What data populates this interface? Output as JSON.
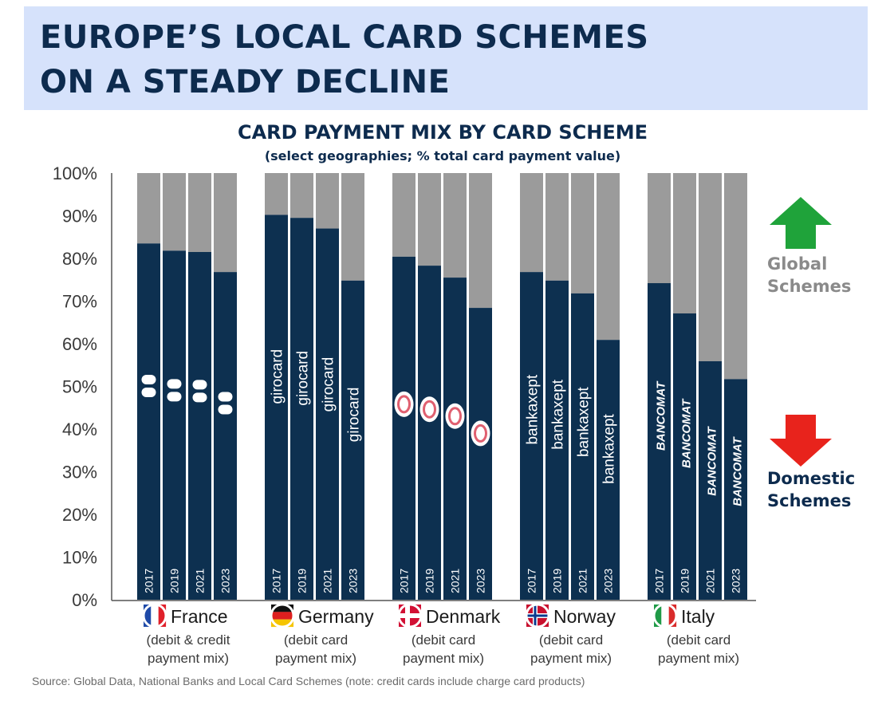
{
  "header": {
    "line1": "EUROPE’S LOCAL CARD SCHEMES",
    "line2": "ON A STEADY DECLINE"
  },
  "chart_data": {
    "type": "bar",
    "stacked": true,
    "title": "CARD PAYMENT MIX BY CARD SCHEME",
    "subtitle": "(select geographies; % total card payment value)",
    "yticks": [
      "0%",
      "10%",
      "20%",
      "30%",
      "40%",
      "50%",
      "60%",
      "70%",
      "80%",
      "90%",
      "100%"
    ],
    "ylim": [
      0,
      100
    ],
    "colors": {
      "domestic": "#0d3050",
      "global": "#9b9b9b"
    },
    "groups": [
      {
        "country": "France",
        "note1": "(debit & credit",
        "note2": "payment mix)",
        "logo": "cb-logo-icon",
        "years": [
          "2017",
          "2019",
          "2021",
          "2023"
        ],
        "domestic": [
          83.5,
          81.8,
          81.5,
          76.8
        ]
      },
      {
        "country": "Germany",
        "note1": "(debit card",
        "note2": "payment mix)",
        "logo": "girocard",
        "years": [
          "2017",
          "2019",
          "2021",
          "2023"
        ],
        "domestic": [
          90.2,
          89.5,
          87.0,
          74.8
        ]
      },
      {
        "country": "Denmark",
        "note1": "(debit card",
        "note2": "payment mix)",
        "logo": "dankort-logo-icon",
        "years": [
          "2017",
          "2019",
          "2021",
          "2023"
        ],
        "domestic": [
          80.4,
          78.3,
          75.5,
          68.4
        ]
      },
      {
        "country": "Norway",
        "note1": "(debit card",
        "note2": "payment mix)",
        "logo": "bankaxept",
        "years": [
          "2017",
          "2019",
          "2021",
          "2023"
        ],
        "domestic": [
          76.8,
          74.8,
          71.8,
          60.9
        ]
      },
      {
        "country": "Italy",
        "note1": "(debit card",
        "note2": "payment mix)",
        "logo": "BANCOMAT",
        "years": [
          "2017",
          "2019",
          "2021",
          "2023"
        ],
        "domestic": [
          74.2,
          67.1,
          55.9,
          51.7
        ]
      }
    ]
  },
  "legend": {
    "global_line1": "Global",
    "global_line2": "Schemes",
    "domestic_line1": "Domestic",
    "domestic_line2": "Schemes",
    "global_color": "#8a8a8a",
    "domestic_color": "#0d2b4e",
    "up_arrow_color": "#1fa33a",
    "down_arrow_color": "#e8231c"
  },
  "source": "Source: Global Data, National Banks and Local Card Schemes (note: credit cards include charge card products)"
}
